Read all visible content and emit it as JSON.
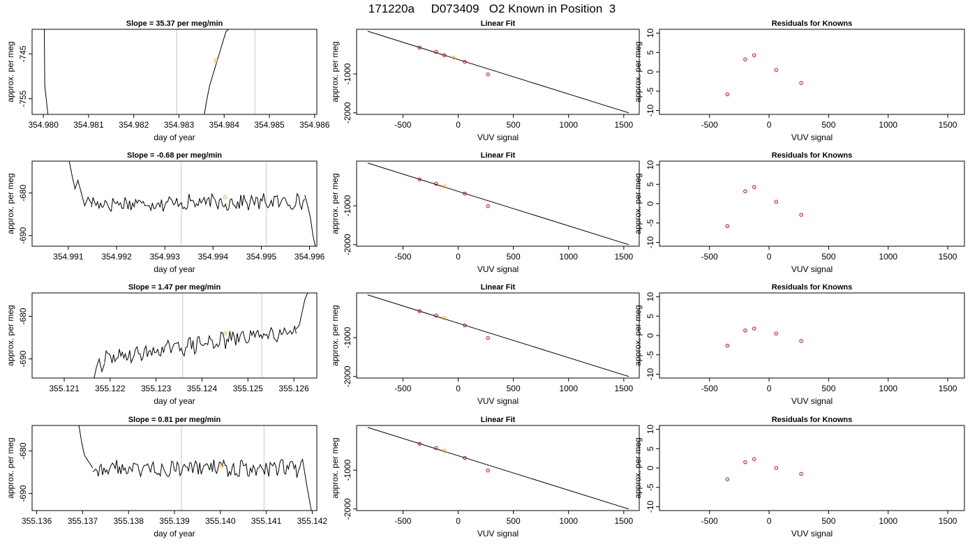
{
  "figure": {
    "title": "171220a     D073409   O2 Known in Position  3",
    "colors": {
      "trace": "#000000",
      "grid_vline": "#c8c8c8",
      "point_orange": "#ffa500",
      "point_red": "#cc0000"
    }
  },
  "chart_data": [
    {
      "type": "line",
      "title": "Slope =  35.37  per meg/min",
      "xlabel": "day of year",
      "ylabel": "approx. per meg",
      "xlim": [
        354.97975,
        354.98605
      ],
      "ylim": [
        -758.5,
        -739.5
      ],
      "xticks": [
        "354.980",
        "354.981",
        "354.982",
        "354.983",
        "354.984",
        "354.985",
        "354.986"
      ],
      "yticks": [
        "-745",
        "-755"
      ],
      "vlines": [
        354.98295,
        354.98468
      ],
      "marker": {
        "x": 354.98382,
        "y": -746.5
      },
      "series": [
        {
          "x": [
            354.98002,
            354.98003,
            354.9801
          ],
          "y": [
            -739.5,
            -752,
            -758.5
          ]
        },
        {
          "x": [
            354.98356,
            354.98362,
            354.98368,
            354.98374,
            354.9838,
            354.98386,
            354.98392,
            354.98398,
            354.98404,
            354.9841
          ],
          "y": [
            -758.5,
            -755,
            -752,
            -750,
            -748,
            -746,
            -744,
            -742,
            -740,
            -739.5
          ]
        }
      ],
      "noise": null
    },
    {
      "type": "line",
      "title": "Linear Fit",
      "xlabel": "VUV signal",
      "ylabel": "approx. per meg",
      "xlim": [
        -920,
        1640
      ],
      "ylim": [
        -2040,
        150
      ],
      "xticks": [
        "-500",
        "0",
        "500",
        "1000",
        "1500"
      ],
      "yticks": [
        "-1000",
        "-2000"
      ],
      "fit_line": {
        "x": [
          -820,
          1545
        ],
        "y": [
          100,
          -2000
        ]
      },
      "points": [
        {
          "x": -350,
          "y": -320
        },
        {
          "x": -200,
          "y": -430
        },
        {
          "x": -125,
          "y": -520
        },
        {
          "x": -40,
          "y": -580
        },
        {
          "x": 60,
          "y": -685
        },
        {
          "x": 270,
          "y": -1010
        }
      ],
      "highlight_index": 3
    },
    {
      "type": "scatter",
      "title": "Residuals for Knowns",
      "xlabel": "VUV signal",
      "ylabel": "approx. per meg",
      "xlim": [
        -920,
        1640
      ],
      "ylim": [
        -11,
        11
      ],
      "xticks": [
        "-500",
        "0",
        "500",
        "1000",
        "1500"
      ],
      "yticks": [
        "10",
        "5",
        "0",
        "-5",
        "-10"
      ],
      "points": [
        {
          "x": -350,
          "y": -5.8
        },
        {
          "x": -200,
          "y": 3.2
        },
        {
          "x": -125,
          "y": 4.3
        },
        {
          "x": 60,
          "y": 0.5
        },
        {
          "x": 270,
          "y": -2.9
        }
      ]
    },
    {
      "type": "line",
      "title": "Slope =  -0.68  per meg/min",
      "xlabel": "day of year",
      "ylabel": "approx. per meg",
      "xlim": [
        354.99025,
        354.99615
      ],
      "ylim": [
        -692.5,
        -672.5
      ],
      "xticks": [
        "354.991",
        "354.992",
        "354.993",
        "354.994",
        "354.995",
        "354.996"
      ],
      "yticks": [
        "-680",
        "-690"
      ],
      "vlines": [
        354.99334,
        354.9951
      ],
      "marker": {
        "x": 354.99425,
        "y": -681
      },
      "series": [
        {
          "x": [
            354.99102,
            354.99108,
            354.99114,
            354.9912,
            354.99127,
            354.99134,
            354.99141,
            354.99148
          ],
          "y": [
            -672.5,
            -676,
            -679,
            -677,
            -680,
            -683,
            -681,
            -682.5
          ]
        },
        {
          "x": [
            354.9959,
            354.99596,
            354.99602,
            354.99607,
            354.99612
          ],
          "y": [
            -680.5,
            -683,
            -686,
            -690,
            -692.5
          ]
        }
      ],
      "noise": {
        "x0": 354.99148,
        "x1": 354.9959,
        "n": 140,
        "y0": -682.5,
        "y1": -682,
        "amp": 1.6,
        "seed": 17
      }
    },
    {
      "type": "line",
      "title": "Linear Fit",
      "xlabel": "VUV signal",
      "ylabel": "approx. per meg",
      "xlim": [
        -920,
        1640
      ],
      "ylim": [
        -2040,
        150
      ],
      "xticks": [
        "-500",
        "0",
        "500",
        "1000",
        "1500"
      ],
      "yticks": [
        "-1000",
        "-2000"
      ],
      "fit_line": {
        "x": [
          -820,
          1545
        ],
        "y": [
          100,
          -2000
        ]
      },
      "points": [
        {
          "x": -350,
          "y": -320
        },
        {
          "x": -200,
          "y": -430
        },
        {
          "x": -125,
          "y": -500
        },
        {
          "x": 60,
          "y": -685
        },
        {
          "x": 270,
          "y": -1010
        }
      ],
      "highlight_index": 2
    },
    {
      "type": "scatter",
      "title": "Residuals for Knowns",
      "xlabel": "VUV signal",
      "ylabel": "approx. per meg",
      "xlim": [
        -920,
        1640
      ],
      "ylim": [
        -11,
        11
      ],
      "xticks": [
        "-500",
        "0",
        "500",
        "1000",
        "1500"
      ],
      "yticks": [
        "10",
        "5",
        "0",
        "-5",
        "-10"
      ],
      "points": [
        {
          "x": -350,
          "y": -5.8
        },
        {
          "x": -200,
          "y": 3.2
        },
        {
          "x": -125,
          "y": 4.3
        },
        {
          "x": 60,
          "y": 0.5
        },
        {
          "x": 270,
          "y": -2.9
        }
      ]
    },
    {
      "type": "line",
      "title": "Slope =  1.47  per meg/min",
      "xlabel": "day of year",
      "ylabel": "approx. per meg",
      "xlim": [
        355.1203,
        355.1265
      ],
      "ylim": [
        -694.5,
        -674.5
      ],
      "xticks": [
        "355.121",
        "355.122",
        "355.123",
        "355.124",
        "355.125",
        "355.126"
      ],
      "yticks": [
        "-680",
        "-690"
      ],
      "vlines": [
        355.12358,
        355.1253
      ],
      "marker": {
        "x": 355.1245,
        "y": -684
      },
      "series": [
        {
          "x": [
            355.12165,
            355.1217,
            355.12176,
            355.12182,
            355.12188
          ],
          "y": [
            -694.5,
            -692,
            -690,
            -693,
            -691
          ]
        },
        {
          "x": [
            355.12605,
            355.12612,
            355.12618,
            355.12624,
            355.1263
          ],
          "y": [
            -683,
            -682,
            -679,
            -676,
            -674.5
          ]
        }
      ],
      "noise": {
        "x0": 355.12188,
        "x1": 355.12605,
        "n": 130,
        "y0": -690,
        "y1": -683,
        "amp": 1.7,
        "seed": 29
      }
    },
    {
      "type": "line",
      "title": "Linear Fit",
      "xlabel": "VUV signal",
      "ylabel": "approx. per meg",
      "xlim": [
        -920,
        1640
      ],
      "ylim": [
        -2040,
        150
      ],
      "xticks": [
        "-500",
        "0",
        "500",
        "1000",
        "1500"
      ],
      "yticks": [
        "-1000",
        "-2000"
      ],
      "fit_line": {
        "x": [
          -820,
          1545
        ],
        "y": [
          100,
          -2000
        ]
      },
      "points": [
        {
          "x": -350,
          "y": -320
        },
        {
          "x": -200,
          "y": -430
        },
        {
          "x": -125,
          "y": -500
        },
        {
          "x": 60,
          "y": -685
        },
        {
          "x": 270,
          "y": -1010
        }
      ],
      "highlight_index": 2
    },
    {
      "type": "scatter",
      "title": "Residuals for Knowns",
      "xlabel": "VUV signal",
      "ylabel": "approx. per meg",
      "xlim": [
        -920,
        1640
      ],
      "ylim": [
        -11,
        11
      ],
      "xticks": [
        "-500",
        "0",
        "500",
        "1000",
        "1500"
      ],
      "yticks": [
        "10",
        "5",
        "0",
        "-5",
        "-10"
      ],
      "points": [
        {
          "x": -350,
          "y": -2.6
        },
        {
          "x": -200,
          "y": 1.3
        },
        {
          "x": -125,
          "y": 1.8
        },
        {
          "x": 60,
          "y": 0.5
        },
        {
          "x": 270,
          "y": -1.4
        }
      ]
    },
    {
      "type": "line",
      "title": "Slope =  0.81  per meg/min",
      "xlabel": "day of year",
      "ylabel": "approx. per meg",
      "xlim": [
        355.1359,
        355.1421
      ],
      "ylim": [
        -694,
        -674
      ],
      "xticks": [
        "355.136",
        "355.137",
        "355.138",
        "355.139",
        "355.140",
        "355.141",
        "355.142"
      ],
      "yticks": [
        "-680",
        "-690"
      ],
      "vlines": [
        355.13915,
        355.14095
      ],
      "marker": {
        "x": 355.14003,
        "y": -683.5
      },
      "series": [
        {
          "x": [
            355.13692,
            355.13698,
            355.13704,
            355.1371,
            355.13716,
            355.13722
          ],
          "y": [
            -674,
            -678,
            -681,
            -682,
            -683,
            -684
          ]
        },
        {
          "x": [
            355.14182,
            355.14188,
            355.14193,
            355.14198
          ],
          "y": [
            -684,
            -688,
            -691,
            -694
          ]
        }
      ],
      "noise": {
        "x0": 355.13722,
        "x1": 355.14182,
        "n": 150,
        "y0": -684,
        "y1": -684,
        "amp": 1.8,
        "seed": 43
      }
    },
    {
      "type": "line",
      "title": "Linear Fit",
      "xlabel": "VUV signal",
      "ylabel": "approx. per meg",
      "xlim": [
        -920,
        1640
      ],
      "ylim": [
        -2040,
        150
      ],
      "xticks": [
        "-500",
        "0",
        "500",
        "1000",
        "1500"
      ],
      "yticks": [
        "-1000",
        "-2000"
      ],
      "fit_line": {
        "x": [
          -820,
          1545
        ],
        "y": [
          100,
          -2000
        ]
      },
      "points": [
        {
          "x": -350,
          "y": -320
        },
        {
          "x": -200,
          "y": -430
        },
        {
          "x": -125,
          "y": -500
        },
        {
          "x": 60,
          "y": -685
        },
        {
          "x": 270,
          "y": -1010
        }
      ],
      "highlight_index": 2
    },
    {
      "type": "scatter",
      "title": "Residuals for Knowns",
      "xlabel": "VUV signal",
      "ylabel": "approx. per meg",
      "xlim": [
        -920,
        1640
      ],
      "ylim": [
        -11,
        11
      ],
      "xticks": [
        "-500",
        "0",
        "500",
        "1000",
        "1500"
      ],
      "yticks": [
        "10",
        "5",
        "0",
        "-5",
        "-10"
      ],
      "points": [
        {
          "x": -350,
          "y": -2.9
        },
        {
          "x": -200,
          "y": 1.5
        },
        {
          "x": -125,
          "y": 2.3
        },
        {
          "x": 60,
          "y": 0.0
        },
        {
          "x": 270,
          "y": -1.5
        }
      ]
    }
  ]
}
